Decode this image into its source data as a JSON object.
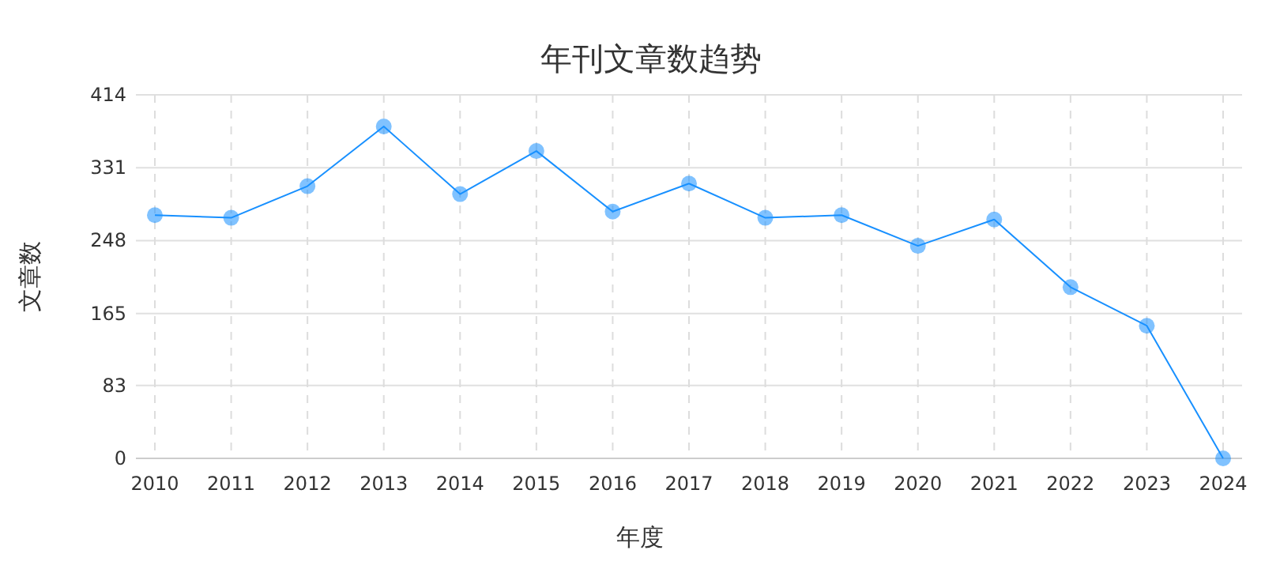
{
  "chart_data": {
    "type": "line",
    "title": "年刊文章数趋势",
    "xlabel": "年度",
    "ylabel": "文章数",
    "categories": [
      "2010",
      "2011",
      "2012",
      "2013",
      "2014",
      "2015",
      "2016",
      "2017",
      "2018",
      "2019",
      "2020",
      "2021",
      "2022",
      "2023",
      "2024"
    ],
    "series": [
      {
        "color": "#1890ff",
        "values": [
          277,
          274,
          310,
          378,
          301,
          350,
          281,
          313,
          274,
          277,
          242,
          272,
          195,
          151,
          0
        ]
      }
    ],
    "ylim": [
      0,
      414
    ],
    "yticks": [
      0,
      83,
      165,
      248,
      331,
      414
    ],
    "grid": true,
    "marker": "circle",
    "line_style": "solid"
  }
}
